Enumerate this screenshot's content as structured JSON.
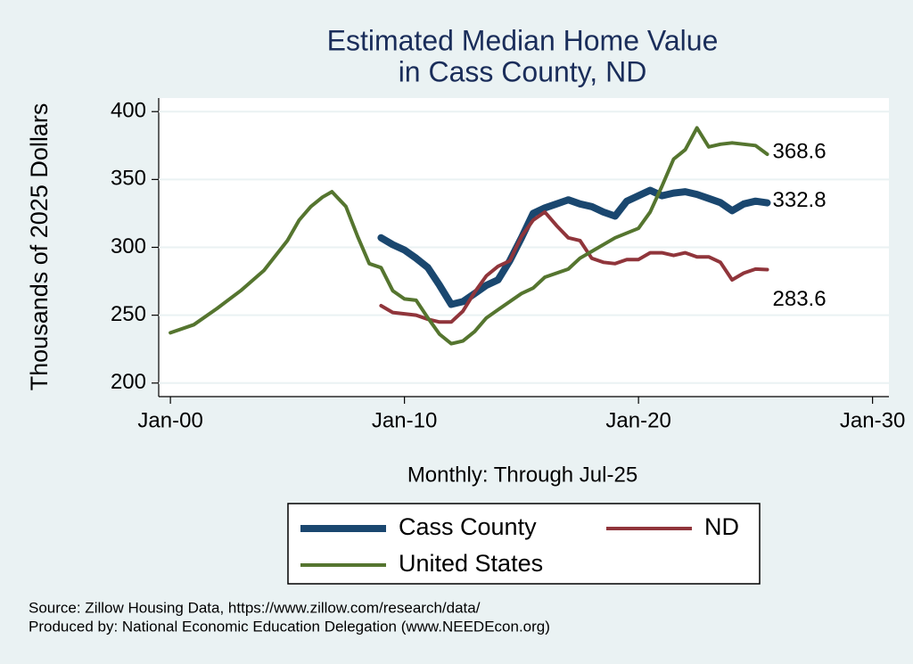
{
  "chart_data": {
    "type": "line",
    "title": [
      "Estimated Median Home Value",
      "in Cass County, ND"
    ],
    "y_label": "Thousands of 2025 Dollars",
    "x_label": "Monthly: Through Jul-25",
    "notes": [
      "Source: Zillow Housing Data, https://www.zillow.com/research/data/",
      "Produced by: National Economic Education Delegation (www.NEEDEcon.org)"
    ],
    "xlim": [
      1999.5,
      2030.7
    ],
    "ylim": [
      190,
      410
    ],
    "xticks": [
      {
        "value": 2000,
        "label": "Jan-00"
      },
      {
        "value": 2010,
        "label": "Jan-10"
      },
      {
        "value": 2020,
        "label": "Jan-20"
      },
      {
        "value": 2030,
        "label": "Jan-30"
      }
    ],
    "yticks": [
      200,
      250,
      300,
      350,
      400
    ],
    "grid": true,
    "legend": "bottom",
    "series": [
      {
        "name": "Cass County",
        "color": "#1a476f",
        "width": 8,
        "x": [
          2009,
          2009.5,
          2010,
          2010.5,
          2011,
          2011.5,
          2012,
          2012.5,
          2013,
          2013.5,
          2014,
          2014.5,
          2015,
          2015.5,
          2016,
          2016.5,
          2017,
          2017.5,
          2018,
          2018.5,
          2019,
          2019.5,
          2020,
          2020.5,
          2021,
          2021.5,
          2022,
          2022.5,
          2023,
          2023.5,
          2024,
          2024.5,
          2025,
          2025.5
        ],
        "values": [
          307,
          302,
          298,
          292,
          285,
          272,
          258,
          260,
          266,
          272,
          276,
          290,
          307,
          325,
          329,
          332,
          335,
          332,
          330,
          326,
          323,
          334,
          338,
          342,
          338,
          340,
          341,
          339,
          336,
          333,
          327,
          332,
          334,
          332.8
        ]
      },
      {
        "name": "ND",
        "color": "#90353b",
        "width": 4,
        "x": [
          2009,
          2009.5,
          2010,
          2010.5,
          2011,
          2011.5,
          2012,
          2012.5,
          2013,
          2013.5,
          2014,
          2014.5,
          2015,
          2015.5,
          2016,
          2016.5,
          2017,
          2017.5,
          2018,
          2018.5,
          2019,
          2019.5,
          2020,
          2020.5,
          2021,
          2021.5,
          2022,
          2022.5,
          2023,
          2023.5,
          2024,
          2024.5,
          2025,
          2025.5
        ],
        "values": [
          257,
          252,
          251,
          250,
          247,
          245,
          245,
          253,
          267,
          279,
          286,
          290,
          308,
          320,
          326,
          316,
          307,
          305,
          292,
          289,
          288,
          291,
          291,
          296,
          296,
          294,
          296,
          293,
          293,
          289,
          276,
          281,
          284,
          283.6
        ]
      },
      {
        "name": "United States",
        "color": "#55752f",
        "width": 4,
        "x": [
          2000,
          2001,
          2002,
          2003,
          2004,
          2005,
          2005.5,
          2006,
          2006.5,
          2006.9,
          2007.5,
          2008,
          2008.5,
          2009,
          2009.5,
          2010,
          2010.5,
          2011,
          2011.5,
          2012,
          2012.5,
          2013,
          2013.5,
          2014,
          2015,
          2015.5,
          2016,
          2017,
          2017.5,
          2018,
          2019,
          2020,
          2020.5,
          2021,
          2021.5,
          2022,
          2022.5,
          2023,
          2023.5,
          2024,
          2024.5,
          2025,
          2025.5
        ],
        "values": [
          237,
          243,
          255,
          268,
          283,
          305,
          320,
          330,
          337,
          341,
          330,
          308,
          288,
          285,
          268,
          262,
          261,
          248,
          236,
          229,
          231,
          238,
          248,
          254,
          266,
          270,
          278,
          284,
          292,
          297,
          307,
          314,
          326,
          345,
          365,
          372,
          388,
          374,
          376,
          377,
          376,
          375,
          368.6
        ]
      }
    ]
  }
}
